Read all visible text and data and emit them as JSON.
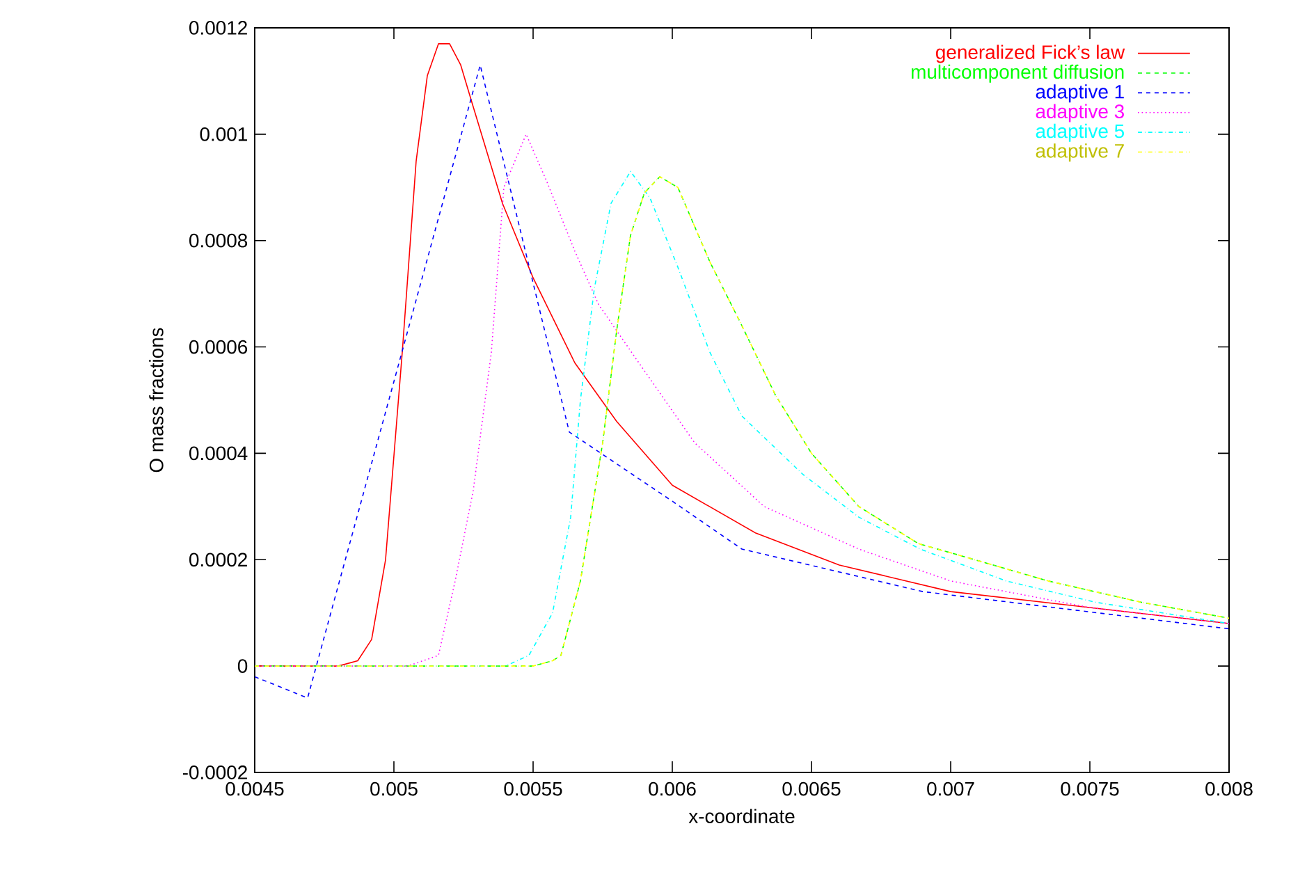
{
  "chart_data": {
    "type": "line",
    "xlabel": "x-coordinate",
    "ylabel": "O mass fractions",
    "xlim": [
      0.0045,
      0.008
    ],
    "ylim": [
      -0.0002,
      0.0012
    ],
    "xticks": [
      0.0045,
      0.005,
      0.0055,
      0.006,
      0.0065,
      0.007,
      0.0075,
      0.008
    ],
    "yticks": [
      -0.0002,
      0,
      0.0002,
      0.0004,
      0.0006,
      0.0008,
      0.001,
      0.0012
    ],
    "legend": "top right",
    "series": [
      {
        "name": "generalized Fick’s law",
        "color": "#ff0000",
        "line_style": "solid",
        "x": [
          0.0045,
          0.0048,
          0.00487,
          0.00492,
          0.00497,
          0.00503,
          0.00508,
          0.00512,
          0.00516,
          0.0052,
          0.00524,
          0.00528,
          0.00539,
          0.0055,
          0.00565,
          0.0058,
          0.006,
          0.0063,
          0.0066,
          0.007,
          0.0075,
          0.008
        ],
        "values": [
          0,
          0,
          1e-05,
          5e-05,
          0.0002,
          0.00059,
          0.00095,
          0.00111,
          0.00117,
          0.00117,
          0.00113,
          0.00106,
          0.00087,
          0.00073,
          0.00057,
          0.00046,
          0.00034,
          0.00025,
          0.00019,
          0.00014,
          0.00011,
          8e-05
        ]
      },
      {
        "name": "multicomponent diffusion",
        "color": "#00ff00",
        "line_style": "dashed",
        "x": [
          0.0045,
          0.0055,
          0.00557,
          0.0056,
          0.00567,
          0.00575,
          0.0058,
          0.00585,
          0.0059,
          0.005955,
          0.00602,
          0.006135,
          0.00625,
          0.00637,
          0.0065,
          0.00667,
          0.006885,
          0.00702,
          0.00735,
          0.007685,
          0.008
        ],
        "values": [
          0,
          0,
          1e-05,
          2e-05,
          0.00016,
          0.00042,
          0.00063,
          0.00081,
          0.00089,
          0.00092,
          0.0009,
          0.00076,
          0.00064,
          0.00051,
          0.0004,
          0.0003,
          0.00023,
          0.00021,
          0.00016,
          0.00012,
          9e-05
        ]
      },
      {
        "name": "adaptive 1",
        "color": "#0000ff",
        "line_style": "dashed",
        "x": [
          0.0045,
          0.00469,
          0.00531,
          0.00563,
          0.006,
          0.00625,
          0.0069,
          0.008
        ],
        "values": [
          -2e-05,
          -6e-05,
          0.00113,
          0.00044,
          0.00031,
          0.00022,
          0.00014,
          7e-05
        ]
      },
      {
        "name": "adaptive 3",
        "color": "#ff00ff",
        "line_style": "dotted",
        "x": [
          0.0045,
          0.00505,
          0.00516,
          0.00522,
          0.005285,
          0.00535,
          0.005395,
          0.005475,
          0.00555,
          0.00565,
          0.005735,
          0.00588,
          0.00608,
          0.00633,
          0.00667,
          0.007,
          0.0075,
          0.008
        ],
        "values": [
          0,
          0,
          2e-05,
          0.00016,
          0.00033,
          0.00059,
          0.0009,
          0.001,
          0.00091,
          0.00078,
          0.00068,
          0.00057,
          0.00042,
          0.0003,
          0.00022,
          0.00016,
          0.00011,
          8e-05
        ]
      },
      {
        "name": "adaptive 5",
        "color": "#00ffff",
        "line_style": "dashdot",
        "x": [
          0.0045,
          0.0054,
          0.005485,
          0.00557,
          0.005635,
          0.00567,
          0.00572,
          0.00578,
          0.00585,
          0.00592,
          0.00602,
          0.006135,
          0.00625,
          0.00647,
          0.00667,
          0.00689,
          0.0072,
          0.00752,
          0.008
        ],
        "values": [
          0,
          0,
          2e-05,
          0.0001,
          0.00028,
          0.0005,
          0.00071,
          0.00087,
          0.00093,
          0.00088,
          0.00075,
          0.00059,
          0.00047,
          0.00036,
          0.00028,
          0.00022,
          0.00016,
          0.00012,
          8e-05
        ]
      },
      {
        "name": "adaptive 7",
        "color": "#ffff00",
        "line_style": "dashdot",
        "x": [
          0.0045,
          0.0055,
          0.00557,
          0.0056,
          0.00567,
          0.00575,
          0.0058,
          0.00585,
          0.0059,
          0.005955,
          0.00602,
          0.006135,
          0.00625,
          0.00637,
          0.0065,
          0.00667,
          0.006885,
          0.00702,
          0.00735,
          0.007685,
          0.008
        ],
        "values": [
          0,
          0,
          1e-05,
          2e-05,
          0.00016,
          0.00042,
          0.00063,
          0.00081,
          0.00089,
          0.00092,
          0.0009,
          0.00076,
          0.00064,
          0.00051,
          0.0004,
          0.0003,
          0.00023,
          0.00021,
          0.00016,
          0.00012,
          9e-05
        ]
      }
    ]
  }
}
